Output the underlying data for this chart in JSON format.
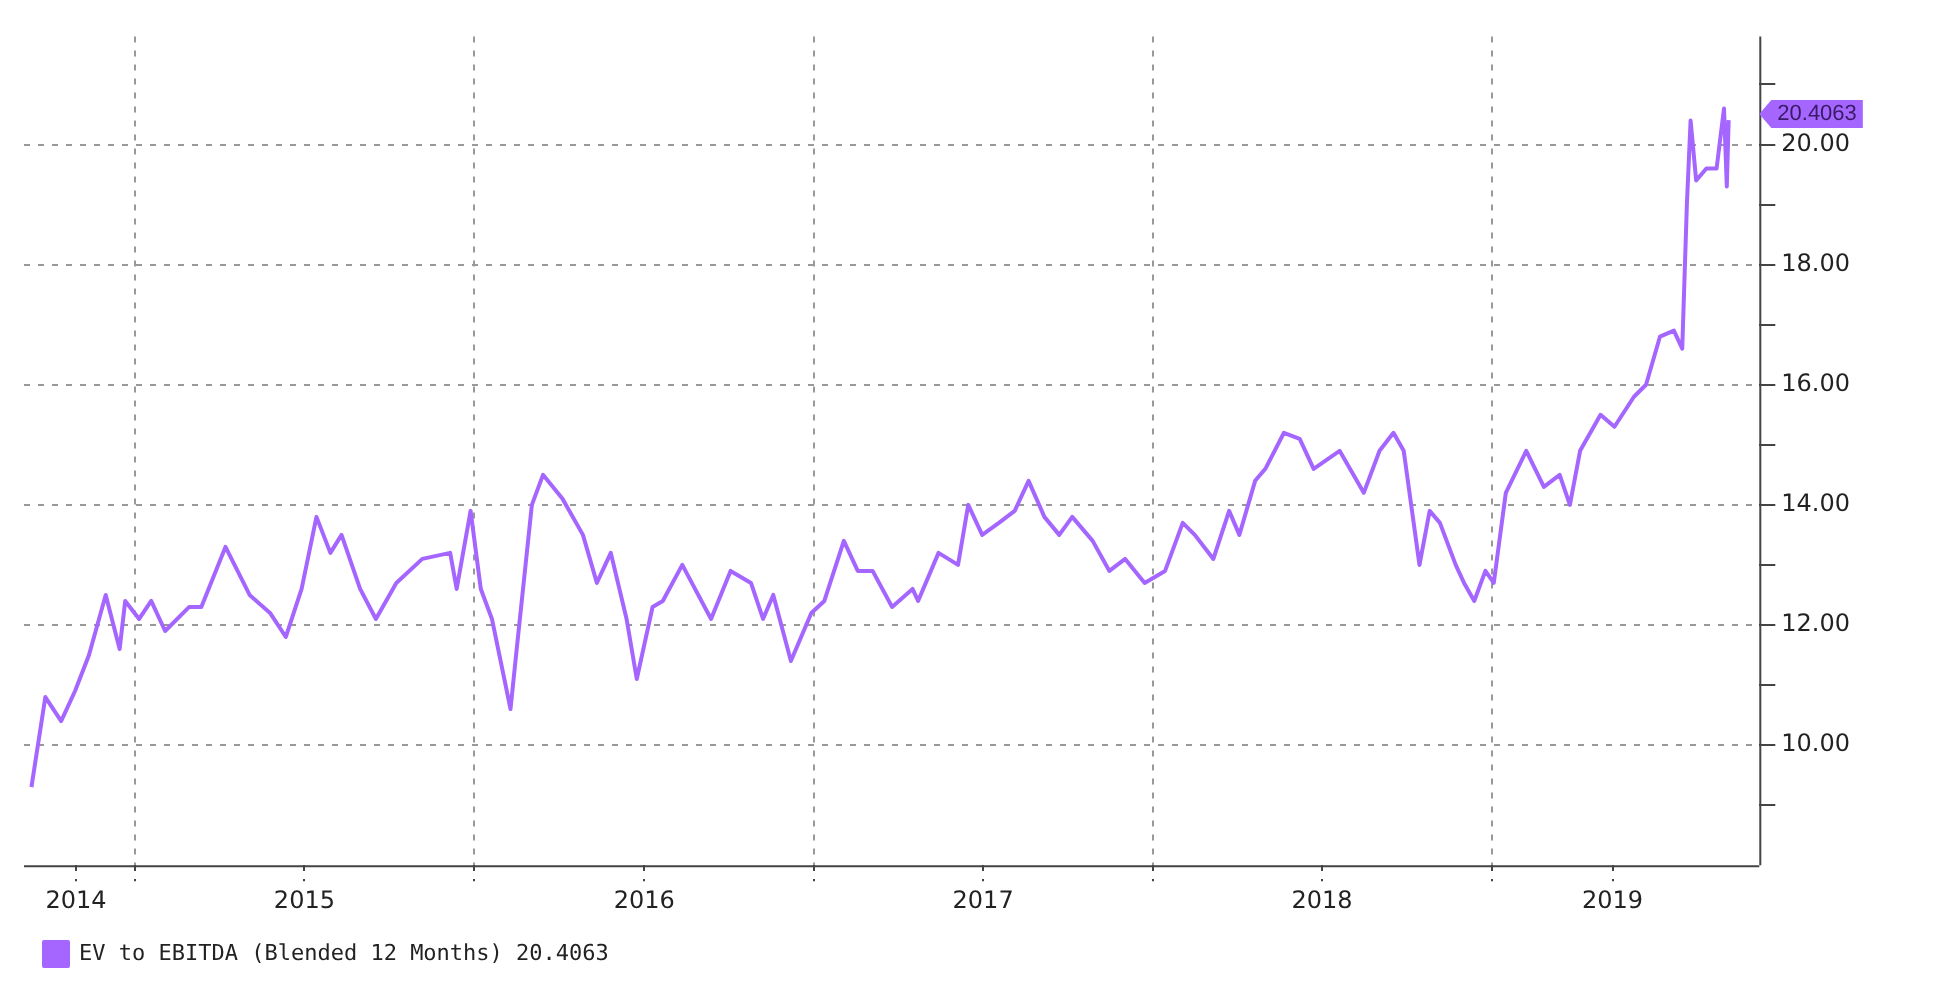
{
  "chart_data": {
    "type": "line",
    "x": [
      "2014-09-11",
      "2014-09-26",
      "2014-10-13",
      "2014-10-28",
      "2014-11-12",
      "2014-11-30",
      "2014-12-15",
      "2014-12-21",
      "2015-01-05",
      "2015-01-18",
      "2015-02-02",
      "2015-02-28",
      "2015-03-13",
      "2015-04-08",
      "2015-05-04",
      "2015-05-26",
      "2015-06-12",
      "2015-06-29",
      "2015-07-15",
      "2015-07-30",
      "2015-08-11",
      "2015-08-31",
      "2015-09-17",
      "2015-10-09",
      "2015-11-06",
      "2015-12-06",
      "2015-12-13",
      "2015-12-28",
      "2016-01-08",
      "2016-01-20",
      "2016-02-09",
      "2016-02-15",
      "2016-03-03",
      "2016-03-15",
      "2016-04-05",
      "2016-04-27",
      "2016-05-12",
      "2016-05-27",
      "2016-06-13",
      "2016-06-24",
      "2016-07-11",
      "2016-07-22",
      "2016-08-12",
      "2016-09-12",
      "2016-10-03",
      "2016-10-25",
      "2016-11-07",
      "2016-11-18",
      "2016-12-07",
      "2016-12-29",
      "2017-01-12",
      "2017-02-02",
      "2017-02-17",
      "2017-03-05",
      "2017-03-26",
      "2017-04-17",
      "2017-04-23",
      "2017-05-15",
      "2017-06-05",
      "2017-06-16",
      "2017-07-01",
      "2017-07-19",
      "2017-08-05",
      "2017-08-20",
      "2017-09-06",
      "2017-09-22",
      "2017-10-06",
      "2017-10-28",
      "2017-11-15",
      "2017-12-02",
      "2017-12-23",
      "2018-01-14",
      "2018-02-02",
      "2018-02-15",
      "2018-03-07",
      "2018-03-24",
      "2018-04-04",
      "2018-04-21",
      "2018-05-02",
      "2018-05-22",
      "2018-06-08",
      "2018-06-23",
      "2018-07-21",
      "2018-08-16",
      "2018-09-02",
      "2018-09-17",
      "2018-09-28",
      "2018-10-15",
      "2018-10-26",
      "2018-11-06",
      "2018-11-23",
      "2018-12-02",
      "2018-12-13",
      "2018-12-25",
      "2019-01-03",
      "2019-01-16",
      "2019-02-07",
      "2019-02-26",
      "2019-03-15",
      "2019-03-26",
      "2019-04-06",
      "2019-04-28",
      "2019-05-13",
      "2019-06-03",
      "2019-06-16",
      "2019-07-01",
      "2019-07-16",
      "2019-07-25",
      "2019-07-30",
      "2019-08-03",
      "2019-08-09",
      "2019-08-20",
      "2019-08-31",
      "2019-09-08",
      "2019-09-11",
      "2019-09-13"
    ],
    "series": [
      {
        "name": "EV to EBITDA (Blended 12 Months) 20.4063",
        "color": "#a566ff",
        "values": [
          9.3,
          10.8,
          10.4,
          10.9,
          11.5,
          12.5,
          11.6,
          12.4,
          12.1,
          12.4,
          11.9,
          12.3,
          12.3,
          13.3,
          12.5,
          12.2,
          11.8,
          12.6,
          13.8,
          13.2,
          13.5,
          12.6,
          12.1,
          12.7,
          13.1,
          13.2,
          12.6,
          13.9,
          12.6,
          12.1,
          10.6,
          11.5,
          14.0,
          14.5,
          14.1,
          13.5,
          12.7,
          13.2,
          12.1,
          11.1,
          12.3,
          12.4,
          13.0,
          12.1,
          12.9,
          12.7,
          12.1,
          12.5,
          11.4,
          12.2,
          12.4,
          13.4,
          12.9,
          12.9,
          12.3,
          12.6,
          12.4,
          13.2,
          13.0,
          14.0,
          13.5,
          13.7,
          13.9,
          14.4,
          13.8,
          13.5,
          13.8,
          13.4,
          12.9,
          13.1,
          12.7,
          12.9,
          13.7,
          13.5,
          13.1,
          13.9,
          13.5,
          14.4,
          14.6,
          15.2,
          15.1,
          14.6,
          14.9,
          14.2,
          14.9,
          15.2,
          14.9,
          13.0,
          13.9,
          13.7,
          13.0,
          12.7,
          12.4,
          12.9,
          12.7,
          14.2,
          14.9,
          14.3,
          14.5,
          14.0,
          14.9,
          15.5,
          15.3,
          15.8,
          16.0,
          16.8,
          16.9,
          16.6,
          19.0,
          20.4,
          19.4,
          19.6,
          19.6,
          20.6,
          19.3,
          20.4063
        ]
      }
    ],
    "annotations": [
      "20.4063"
    ],
    "xlim": [
      "2014-09-03",
      "2019-10-16"
    ],
    "xticks": [
      {
        "value": "2014-10-29",
        "label": "2014"
      },
      {
        "value": "2015-01-01",
        "label": null
      },
      {
        "value": "2015-07-02",
        "label": "2015"
      },
      {
        "value": "2016-01-01",
        "label": null
      },
      {
        "value": "2016-07-02",
        "label": "2016"
      },
      {
        "value": "2017-01-01",
        "label": null
      },
      {
        "value": "2017-07-02",
        "label": "2017"
      },
      {
        "value": "2018-01-01",
        "label": null
      },
      {
        "value": "2018-07-02",
        "label": "2018"
      },
      {
        "value": "2019-01-01",
        "label": null
      },
      {
        "value": "2019-05-11",
        "label": "2019"
      }
    ],
    "ylim": [
      8,
      21.8
    ],
    "yticks": [
      {
        "value": 9,
        "label": null
      },
      {
        "value": 10,
        "label": "10.00"
      },
      {
        "value": 11,
        "label": null
      },
      {
        "value": 12,
        "label": "12.00"
      },
      {
        "value": 13,
        "label": null
      },
      {
        "value": 14,
        "label": "14.00"
      },
      {
        "value": 15,
        "label": null
      },
      {
        "value": 16,
        "label": "16.00"
      },
      {
        "value": 17,
        "label": null
      },
      {
        "value": 18,
        "label": "18.00"
      },
      {
        "value": 19,
        "label": null
      },
      {
        "value": 20,
        "label": "20.00"
      },
      {
        "value": 21,
        "label": null
      }
    ],
    "grid": true,
    "legend": "bottom left",
    "marker": "none",
    "line_style": "solid"
  }
}
